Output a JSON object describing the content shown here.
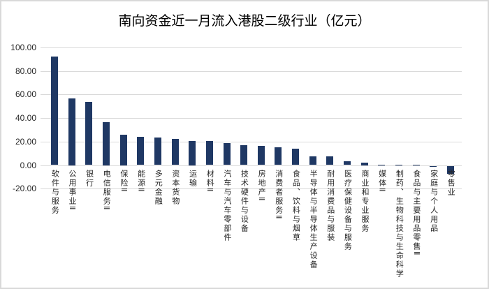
{
  "chart_data": {
    "type": "bar",
    "title": "南向资金近一月流入港股二级行业（亿元）",
    "categories": [
      "软件与服务",
      "公用事业Ⅱ",
      "银行",
      "电信服务Ⅱ",
      "保险Ⅱ",
      "能源Ⅱ",
      "多元金融",
      "资本货物",
      "运输",
      "材料Ⅱ",
      "汽车与汽车零部件",
      "技术硬件与设备",
      "房地产Ⅱ",
      "消费者服务Ⅱ",
      "食品、饮料与烟草",
      "半导体与半导体生产设备",
      "耐用消费品与服装",
      "医疗保健设备与服务",
      "商业和专业服务",
      "媒体Ⅱ",
      "制药、生物科技与生命科学",
      "食品与主要用品零售Ⅱ",
      "家庭与个人用品",
      "零售业"
    ],
    "values": [
      92.5,
      56.7,
      53.5,
      36.8,
      25.8,
      24.0,
      23.2,
      22.4,
      20.5,
      20.3,
      18.9,
      16.7,
      16.1,
      15.2,
      14.2,
      7.5,
      7.3,
      3.4,
      2.4,
      0.6,
      0.4,
      0.2,
      -0.5,
      -7.0
    ],
    "xlabel": "",
    "ylabel": "",
    "ylim": [
      -20,
      100
    ],
    "yticks": [
      100,
      80,
      60,
      40,
      20,
      0,
      -20
    ],
    "ytick_labels": [
      "100.00",
      "80.00",
      "60.00",
      "40.00",
      "20.00",
      "0.00",
      "-20.00"
    ],
    "bar_color": "#1f3864",
    "grid_color": "#d9d9d9",
    "grid": true,
    "legend": false
  }
}
